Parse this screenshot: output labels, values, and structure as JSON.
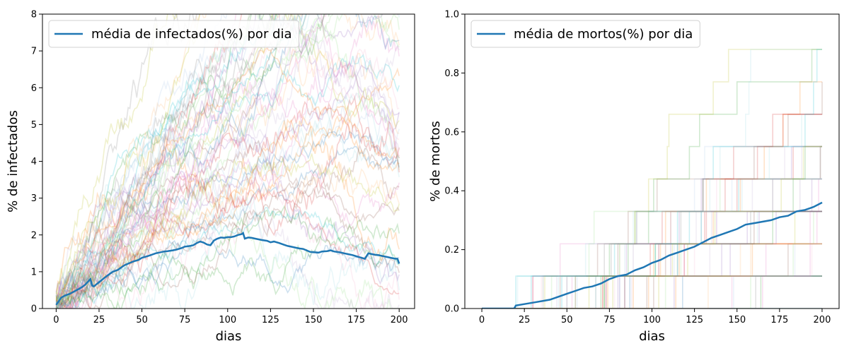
{
  "palette": [
    "#1f77b4",
    "#ff7f0e",
    "#2ca02c",
    "#d62728",
    "#9467bd",
    "#8c564b",
    "#e377c2",
    "#7f7f7f",
    "#bcbd22",
    "#17becf",
    "#9edae5",
    "#98df8a",
    "#ffbb78",
    "#c5b0d5",
    "#f7b6d2",
    "#aec7e8"
  ],
  "mean_color": "#1f77b4",
  "chart_data": [
    {
      "type": "line",
      "title": "",
      "xlabel": "dias",
      "ylabel": "% de infectados",
      "xlim": [
        -8,
        209
      ],
      "ylim": [
        0,
        8
      ],
      "xticks": [
        0,
        25,
        50,
        75,
        100,
        125,
        150,
        175,
        200
      ],
      "yticks": [
        0,
        1,
        2,
        3,
        4,
        5,
        6,
        7,
        8
      ],
      "grid": false,
      "legend": {
        "position": "top-left",
        "entries": [
          "média de infectados(%) por dia"
        ]
      },
      "background_runs": {
        "count": 60,
        "days": 200,
        "kind": "random-walk",
        "start": 0.1,
        "range_min": 0,
        "range_max": 8
      },
      "series": [
        {
          "name": "média de infectados(%) por dia",
          "x": [
            0,
            3,
            5,
            8,
            10,
            12,
            15,
            17,
            19,
            20,
            21,
            22,
            24,
            26,
            28,
            30,
            33,
            36,
            38,
            40,
            43,
            45,
            48,
            50,
            53,
            55,
            58,
            60,
            63,
            65,
            68,
            70,
            73,
            75,
            78,
            80,
            82,
            84,
            86,
            88,
            90,
            92,
            94,
            96,
            98,
            100,
            102,
            104,
            106,
            108,
            109,
            110,
            112,
            114,
            116,
            118,
            120,
            123,
            125,
            127,
            130,
            133,
            135,
            137,
            140,
            142,
            144,
            146,
            148,
            150,
            153,
            155,
            158,
            160,
            162,
            165,
            168,
            170,
            173,
            175,
            178,
            180,
            182,
            184,
            186,
            188,
            190,
            193,
            195,
            197,
            199,
            200
          ],
          "y": [
            0.1,
            0.3,
            0.35,
            0.4,
            0.45,
            0.5,
            0.58,
            0.65,
            0.75,
            0.8,
            0.62,
            0.6,
            0.68,
            0.75,
            0.83,
            0.9,
            1.0,
            1.05,
            1.12,
            1.18,
            1.24,
            1.28,
            1.32,
            1.38,
            1.42,
            1.45,
            1.5,
            1.52,
            1.55,
            1.56,
            1.58,
            1.6,
            1.64,
            1.68,
            1.7,
            1.72,
            1.78,
            1.82,
            1.79,
            1.74,
            1.72,
            1.85,
            1.9,
            1.93,
            1.92,
            1.94,
            1.94,
            1.96,
            2.0,
            2.02,
            2.05,
            1.9,
            1.93,
            1.92,
            1.9,
            1.88,
            1.86,
            1.84,
            1.8,
            1.82,
            1.78,
            1.73,
            1.7,
            1.68,
            1.65,
            1.63,
            1.62,
            1.58,
            1.54,
            1.53,
            1.52,
            1.55,
            1.56,
            1.58,
            1.55,
            1.53,
            1.5,
            1.48,
            1.45,
            1.42,
            1.38,
            1.35,
            1.5,
            1.48,
            1.46,
            1.45,
            1.43,
            1.4,
            1.38,
            1.36,
            1.35,
            1.22
          ]
        }
      ]
    },
    {
      "type": "line",
      "title": "",
      "xlabel": "dias",
      "ylabel": "% de mortos",
      "xlim": [
        -10,
        210
      ],
      "ylim": [
        0,
        1.0
      ],
      "xticks": [
        0,
        25,
        50,
        75,
        100,
        125,
        150,
        175,
        200
      ],
      "yticks": [
        0.0,
        0.2,
        0.4,
        0.6,
        0.8,
        1.0
      ],
      "grid": false,
      "legend": {
        "position": "top-left",
        "entries": [
          "média de mortos(%) por dia"
        ]
      },
      "background_runs": {
        "count": 60,
        "days": 200,
        "kind": "step",
        "step": 0.11,
        "range_min": 0,
        "range_max": 1.0
      },
      "series": [
        {
          "name": "média de mortos(%) por dia",
          "x": [
            0,
            10,
            19,
            20,
            25,
            30,
            35,
            40,
            45,
            50,
            55,
            60,
            65,
            70,
            75,
            80,
            85,
            90,
            95,
            100,
            105,
            110,
            115,
            120,
            125,
            130,
            135,
            140,
            145,
            150,
            155,
            160,
            165,
            170,
            175,
            180,
            185,
            190,
            195,
            200
          ],
          "y": [
            0.0,
            0.0,
            0.0,
            0.01,
            0.015,
            0.02,
            0.025,
            0.03,
            0.04,
            0.05,
            0.06,
            0.07,
            0.075,
            0.085,
            0.1,
            0.11,
            0.115,
            0.13,
            0.14,
            0.155,
            0.165,
            0.18,
            0.19,
            0.2,
            0.21,
            0.225,
            0.24,
            0.25,
            0.26,
            0.27,
            0.285,
            0.29,
            0.295,
            0.3,
            0.31,
            0.315,
            0.33,
            0.335,
            0.345,
            0.36
          ]
        }
      ]
    }
  ]
}
